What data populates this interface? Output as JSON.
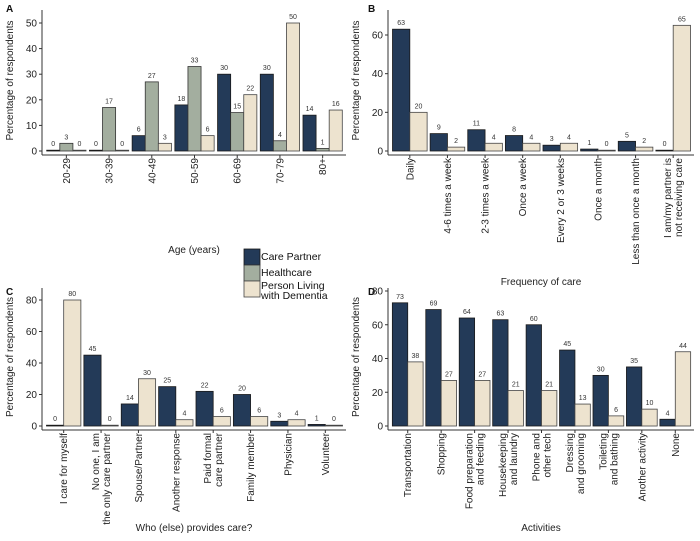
{
  "legend": {
    "entries": [
      {
        "key": "cp",
        "label": "Care Partner",
        "color": "#233a58"
      },
      {
        "key": "hc",
        "label": "Healthcare",
        "color": "#a3ae9f"
      },
      {
        "key": "pd",
        "label": "Person Living\nwith Dementia",
        "color": "#ede3cf"
      }
    ]
  },
  "chart_data": [
    {
      "panel": "A",
      "type": "bar",
      "title": "",
      "xlabel": "Age (years)",
      "ylabel": "Percentage of respondents",
      "ylim": [
        0,
        55
      ],
      "yticks": [
        0,
        10,
        20,
        30,
        40,
        50
      ],
      "categories": [
        "20-29",
        "30-39",
        "40-49",
        "50-59",
        "60-69",
        "70-79",
        "80+"
      ],
      "series": [
        {
          "name": "Care Partner",
          "key": "cp",
          "values": [
            0,
            0,
            6,
            18,
            30,
            30,
            14
          ]
        },
        {
          "name": "Healthcare",
          "key": "hc",
          "values": [
            3,
            17,
            27,
            33,
            15,
            4,
            1
          ]
        },
        {
          "name": "Person Living with Dementia",
          "key": "pd",
          "values": [
            0,
            0,
            3,
            6,
            22,
            50,
            16
          ]
        }
      ]
    },
    {
      "panel": "B",
      "type": "bar",
      "title": "",
      "xlabel": "Frequency of care",
      "ylabel": "Percentage of respondents",
      "ylim": [
        0,
        70
      ],
      "yticks": [
        0,
        20,
        40,
        60
      ],
      "categories": [
        "Daily",
        "4-6 times a week",
        "2-3 times a week",
        "Once a week",
        "Every 2 or 3 weeks",
        "Once a month",
        "Less than once a month",
        "I am/my partner is\nnot receiving care"
      ],
      "series": [
        {
          "name": "Care Partner",
          "key": "cp",
          "values": [
            63,
            9,
            11,
            8,
            3,
            1,
            5,
            0
          ]
        },
        {
          "name": "Person Living with Dementia",
          "key": "pd",
          "values": [
            20,
            2,
            4,
            4,
            4,
            0,
            2,
            65
          ]
        }
      ]
    },
    {
      "panel": "C",
      "type": "bar",
      "title": "",
      "xlabel": "Who (else) provides care?",
      "ylabel": "Percentage of respondents",
      "ylim": [
        0,
        88
      ],
      "yticks": [
        0,
        20,
        40,
        60,
        80
      ],
      "categories": [
        "I care for myself",
        "No one, I am\nthe only care partner",
        "Spouse/Partner",
        "Another response",
        "Paid formal\ncare partner",
        "Family member",
        "Physician",
        "Volunteer"
      ],
      "series": [
        {
          "name": "Care Partner",
          "key": "cp",
          "values": [
            0,
            45,
            14,
            25,
            22,
            20,
            3,
            1
          ]
        },
        {
          "name": "Person Living with Dementia",
          "key": "pd",
          "values": [
            80,
            0,
            30,
            4,
            6,
            6,
            4,
            0
          ]
        }
      ]
    },
    {
      "panel": "D",
      "type": "bar",
      "title": "",
      "xlabel": "Activities",
      "ylabel": "Percentage of respondents",
      "ylim": [
        0,
        80
      ],
      "yticks": [
        0,
        20,
        40,
        60,
        80
      ],
      "categories": [
        "Transportation",
        "Shopping",
        "Food preparation\nand feeding",
        "Housekeeping\nand laundry",
        "Phone and\nother tech",
        "Dressing\nand grooming",
        "Toileting\nand bathing",
        "Another activity",
        "None"
      ],
      "series": [
        {
          "name": "Care Partner",
          "key": "cp",
          "values": [
            73,
            69,
            64,
            63,
            60,
            45,
            30,
            35,
            4
          ]
        },
        {
          "name": "Person Living with Dementia",
          "key": "pd",
          "values": [
            38,
            27,
            27,
            21,
            21,
            13,
            6,
            10,
            44
          ]
        }
      ]
    }
  ]
}
